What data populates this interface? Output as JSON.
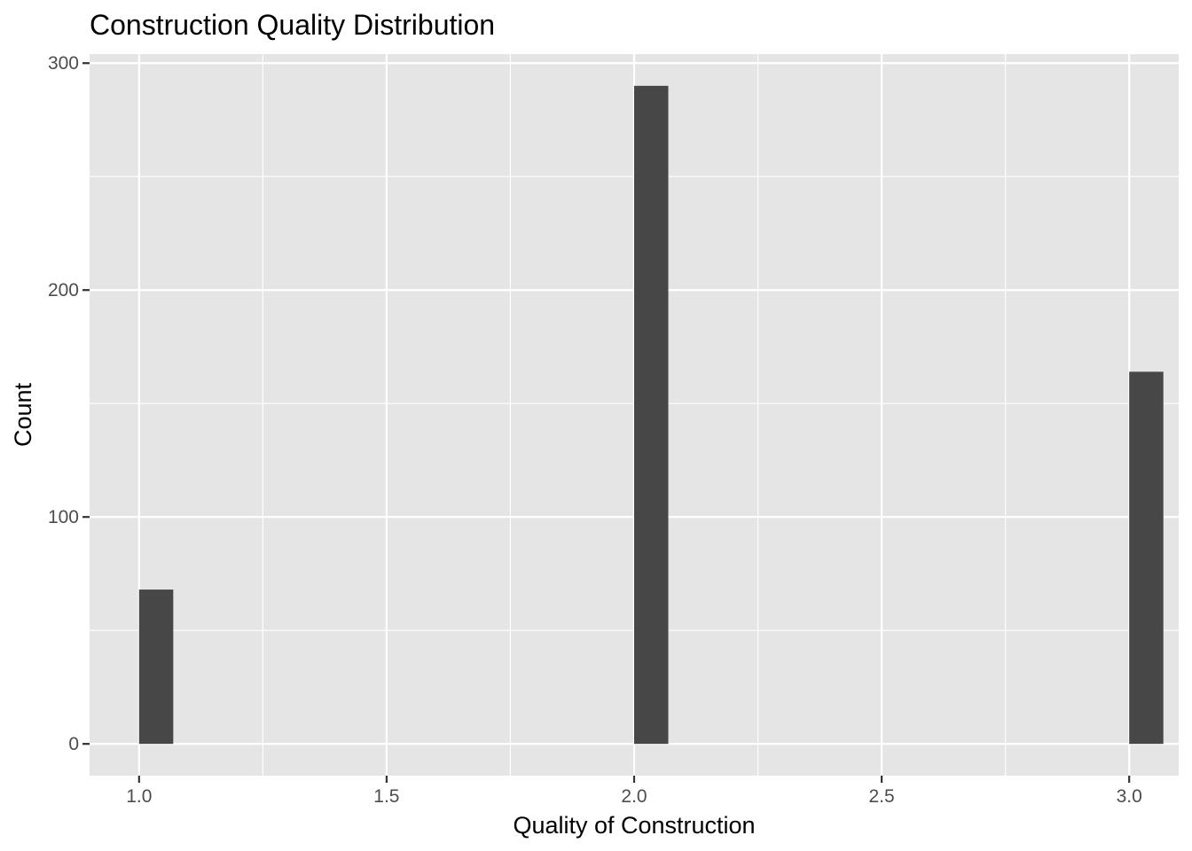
{
  "chart_data": {
    "type": "bar",
    "title": "Construction Quality Distribution",
    "xlabel": "Quality of Construction",
    "ylabel": "Count",
    "x": [
      1.0,
      2.0,
      3.0
    ],
    "values": [
      68,
      290,
      164
    ],
    "xlim": [
      0.9,
      3.1
    ],
    "ylim": [
      -14,
      304
    ],
    "x_ticks": [
      "1.0",
      "1.5",
      "2.0",
      "2.5",
      "3.0"
    ],
    "x_tick_values": [
      1.0,
      1.5,
      2.0,
      2.5,
      3.0
    ],
    "y_ticks": [
      "0",
      "100",
      "200",
      "300"
    ],
    "y_tick_values": [
      0,
      100,
      200,
      300
    ],
    "grid": true,
    "colors": {
      "panel": "#e5e5e5",
      "grid_major": "#ffffff",
      "bar": "#474747",
      "tick": "#333333"
    }
  }
}
